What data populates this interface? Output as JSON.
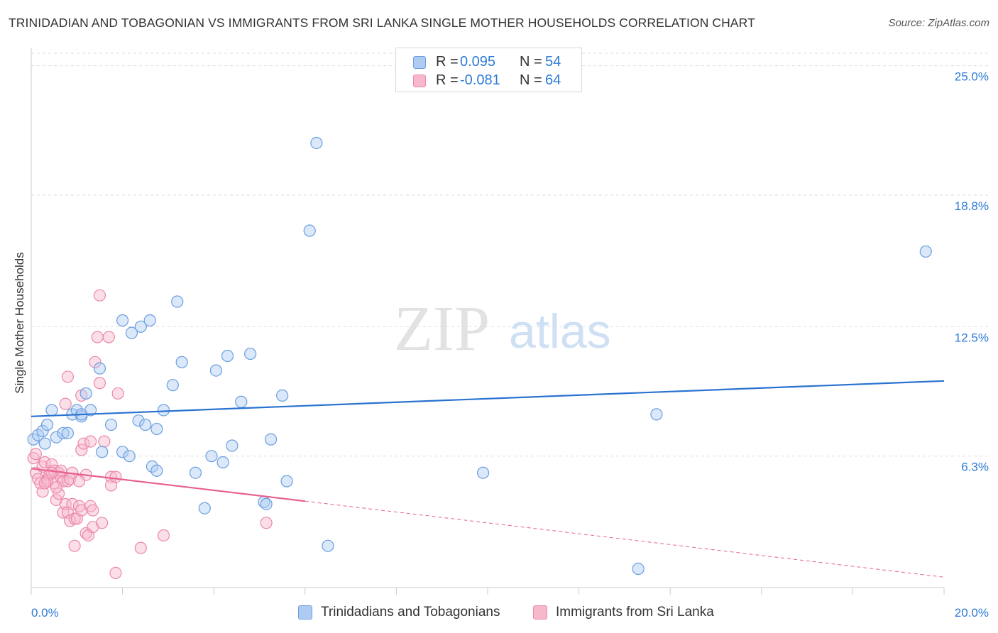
{
  "title": "TRINIDADIAN AND TOBAGONIAN VS IMMIGRANTS FROM SRI LANKA SINGLE MOTHER HOUSEHOLDS CORRELATION CHART",
  "source": "Source: ZipAtlas.com",
  "watermark": {
    "zip": "ZIP",
    "atlas": "atlas"
  },
  "legend_top": [
    {
      "r_label": "R =",
      "r_value": "0.095",
      "n_label": "N =",
      "n_value": "54"
    },
    {
      "r_label": "R =",
      "r_value": "-0.081",
      "n_label": "N =",
      "n_value": "64"
    }
  ],
  "legend_bottom": [
    "Trinidadians and Tobagonians",
    "Immigrants from Sri Lanka"
  ],
  "colors": {
    "blue_fill": "#aecbf2",
    "blue_stroke": "#6b9ee0",
    "blue_line": "#2a72d0",
    "pink_fill": "#f7b8cb",
    "pink_stroke": "#ec88a8",
    "pink_line": "#e7608e",
    "grid": "#dddddd",
    "tick_label": "#2e7bd6"
  },
  "chart_data": {
    "type": "scatter",
    "title": "TRINIDADIAN AND TOBAGONIAN VS IMMIGRANTS FROM SRI LANKA SINGLE MOTHER HOUSEHOLDS CORRELATION CHART",
    "xlabel": "",
    "ylabel": "Single Mother Households",
    "xlim": [
      0,
      20
    ],
    "ylim": [
      0,
      25.6
    ],
    "x_tick_labels": [
      "0.0%",
      "20.0%"
    ],
    "y_ticks": [
      6.3,
      12.5,
      18.8,
      25.0
    ],
    "y_tick_labels": [
      "6.3%",
      "12.5%",
      "18.8%",
      "25.0%"
    ],
    "grid": true,
    "legend_position": "top-center",
    "series": [
      {
        "name": "Trinidadians and Tobagonians",
        "r": 0.095,
        "n": 54,
        "trend": {
          "x": [
            0,
            20
          ],
          "y": [
            8.2,
            9.9
          ],
          "dashed_from": null
        },
        "points": [
          [
            0.05,
            7.1
          ],
          [
            0.15,
            7.3
          ],
          [
            0.25,
            7.5
          ],
          [
            0.35,
            7.8
          ],
          [
            0.45,
            8.5
          ],
          [
            0.55,
            7.2
          ],
          [
            0.7,
            7.4
          ],
          [
            0.8,
            7.4
          ],
          [
            0.9,
            8.3
          ],
          [
            1.0,
            8.5
          ],
          [
            1.1,
            8.2
          ],
          [
            1.2,
            9.3
          ],
          [
            1.3,
            8.5
          ],
          [
            1.1,
            8.3
          ],
          [
            1.55,
            6.5
          ],
          [
            1.75,
            7.8
          ],
          [
            2.0,
            12.8
          ],
          [
            2.0,
            6.5
          ],
          [
            2.2,
            12.2
          ],
          [
            2.15,
            6.3
          ],
          [
            2.4,
            12.5
          ],
          [
            2.35,
            8.0
          ],
          [
            2.5,
            7.8
          ],
          [
            2.6,
            12.8
          ],
          [
            2.65,
            5.8
          ],
          [
            2.75,
            7.6
          ],
          [
            2.75,
            5.6
          ],
          [
            2.9,
            8.5
          ],
          [
            3.1,
            9.7
          ],
          [
            3.2,
            13.7
          ],
          [
            3.3,
            10.8
          ],
          [
            3.6,
            5.5
          ],
          [
            3.8,
            3.8
          ],
          [
            3.95,
            6.3
          ],
          [
            4.05,
            10.4
          ],
          [
            4.2,
            6.0
          ],
          [
            4.3,
            11.1
          ],
          [
            4.4,
            6.8
          ],
          [
            4.6,
            8.9
          ],
          [
            4.8,
            11.2
          ],
          [
            5.1,
            4.1
          ],
          [
            5.15,
            4.0
          ],
          [
            5.25,
            7.1
          ],
          [
            5.5,
            9.2
          ],
          [
            5.6,
            5.1
          ],
          [
            6.1,
            17.1
          ],
          [
            6.25,
            21.3
          ],
          [
            6.5,
            2.0
          ],
          [
            1.5,
            10.5
          ],
          [
            9.9,
            5.5
          ],
          [
            13.7,
            8.3
          ],
          [
            13.3,
            0.9
          ],
          [
            19.6,
            16.1
          ],
          [
            0.3,
            6.9
          ]
        ]
      },
      {
        "name": "Immigrants from Sri Lanka",
        "r": -0.081,
        "n": 64,
        "trend": {
          "x": [
            0,
            20
          ],
          "y": [
            5.7,
            0.5
          ],
          "dashed_from": 6.0
        },
        "points": [
          [
            0.05,
            6.2
          ],
          [
            0.1,
            5.5
          ],
          [
            0.15,
            5.2
          ],
          [
            0.2,
            5.0
          ],
          [
            0.25,
            4.6
          ],
          [
            0.25,
            5.8
          ],
          [
            0.3,
            6.0
          ],
          [
            0.35,
            5.2
          ],
          [
            0.4,
            5.4
          ],
          [
            0.45,
            5.9
          ],
          [
            0.5,
            5.6
          ],
          [
            0.5,
            5.0
          ],
          [
            0.55,
            4.2
          ],
          [
            0.6,
            5.5
          ],
          [
            0.65,
            5.3
          ],
          [
            0.7,
            5.1
          ],
          [
            0.7,
            3.6
          ],
          [
            0.75,
            4.0
          ],
          [
            0.8,
            3.6
          ],
          [
            0.8,
            5.1
          ],
          [
            0.85,
            3.2
          ],
          [
            0.9,
            5.5
          ],
          [
            0.75,
            8.8
          ],
          [
            0.8,
            10.1
          ],
          [
            0.9,
            4.0
          ],
          [
            0.95,
            3.3
          ],
          [
            0.95,
            2.0
          ],
          [
            1.0,
            3.3
          ],
          [
            1.05,
            3.9
          ],
          [
            1.1,
            3.7
          ],
          [
            1.1,
            6.6
          ],
          [
            1.15,
            6.9
          ],
          [
            1.1,
            9.2
          ],
          [
            1.2,
            5.4
          ],
          [
            1.2,
            2.6
          ],
          [
            1.25,
            2.5
          ],
          [
            1.3,
            3.9
          ],
          [
            1.35,
            3.7
          ],
          [
            1.3,
            7.0
          ],
          [
            1.35,
            2.9
          ],
          [
            1.4,
            10.8
          ],
          [
            1.45,
            12.0
          ],
          [
            1.5,
            9.8
          ],
          [
            1.55,
            3.1
          ],
          [
            1.5,
            14.0
          ],
          [
            1.6,
            7.0
          ],
          [
            1.7,
            12.0
          ],
          [
            1.75,
            5.3
          ],
          [
            1.75,
            4.9
          ],
          [
            1.85,
            0.7
          ],
          [
            1.85,
            5.3
          ],
          [
            1.9,
            9.3
          ],
          [
            2.4,
            1.9
          ],
          [
            2.9,
            2.5
          ],
          [
            5.15,
            3.1
          ],
          [
            0.35,
            5.1
          ],
          [
            0.6,
            4.5
          ],
          [
            0.65,
            5.6
          ],
          [
            0.85,
            5.2
          ],
          [
            1.05,
            5.1
          ],
          [
            0.55,
            4.8
          ],
          [
            0.45,
            5.5
          ],
          [
            0.1,
            6.4
          ],
          [
            0.3,
            5.0
          ]
        ]
      }
    ]
  }
}
